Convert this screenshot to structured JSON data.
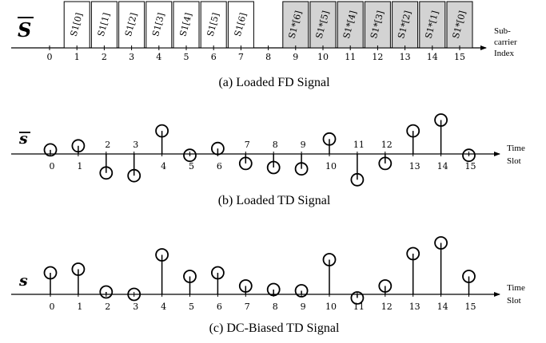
{
  "panel_a": {
    "label": "S",
    "caption": "(a) Loaded FD Signal",
    "axis_label_line1": "Sub-",
    "axis_label_line2": "carrier",
    "axis_label_line3": "Index",
    "ticks": [
      "0",
      "1",
      "2",
      "3",
      "4",
      "5",
      "6",
      "7",
      "8",
      "9",
      "10",
      "11",
      "12",
      "13",
      "14",
      "15"
    ],
    "boxes": [
      {
        "index": 1,
        "text": "S1[0]",
        "conj": false
      },
      {
        "index": 2,
        "text": "S1[1]",
        "conj": false
      },
      {
        "index": 3,
        "text": "S1[2]",
        "conj": false
      },
      {
        "index": 4,
        "text": "S1[3]",
        "conj": false
      },
      {
        "index": 5,
        "text": "S1[4]",
        "conj": false
      },
      {
        "index": 6,
        "text": "S1[5]",
        "conj": false
      },
      {
        "index": 7,
        "text": "S1[6]",
        "conj": false
      },
      {
        "index": 9,
        "text": "S1*[6]",
        "conj": true
      },
      {
        "index": 10,
        "text": "S1*[5]",
        "conj": true
      },
      {
        "index": 11,
        "text": "S1*[4]",
        "conj": true
      },
      {
        "index": 12,
        "text": "S1*[3]",
        "conj": true
      },
      {
        "index": 13,
        "text": "S1*[2]",
        "conj": true
      },
      {
        "index": 14,
        "text": "S1*[1]",
        "conj": true
      },
      {
        "index": 15,
        "text": "S1*[0]",
        "conj": true
      }
    ]
  },
  "panel_b": {
    "label": "s",
    "caption": "(b) Loaded TD Signal",
    "axis_label_line1": "Time",
    "axis_label_line2": "Slot",
    "ticks": [
      "0",
      "1",
      "2",
      "3",
      "4",
      "5",
      "6",
      "7",
      "8",
      "9",
      "10",
      "11",
      "12",
      "13",
      "14",
      "15"
    ],
    "values": [
      0.15,
      0.3,
      -0.7,
      -0.8,
      0.85,
      -0.05,
      0.2,
      -0.35,
      -0.5,
      -0.55,
      0.55,
      -0.95,
      -0.35,
      0.85,
      1.25,
      -0.05
    ]
  },
  "panel_c": {
    "label": "s",
    "caption": "(c) DC-Biased TD Signal",
    "axis_label_line1": "Time",
    "axis_label_line2": "Slot",
    "ticks": [
      "0",
      "1",
      "2",
      "3",
      "4",
      "5",
      "6",
      "7",
      "8",
      "9",
      "10",
      "11",
      "12",
      "13",
      "14",
      "15"
    ],
    "values": [
      0.9,
      1.05,
      0.1,
      0.0,
      1.65,
      0.75,
      0.9,
      0.35,
      0.2,
      0.15,
      1.45,
      -0.15,
      0.35,
      1.7,
      2.15,
      0.75
    ]
  },
  "colors": {
    "box_plain": "#ffffff",
    "box_conj": "#d3d3d3",
    "line": "#000000"
  }
}
